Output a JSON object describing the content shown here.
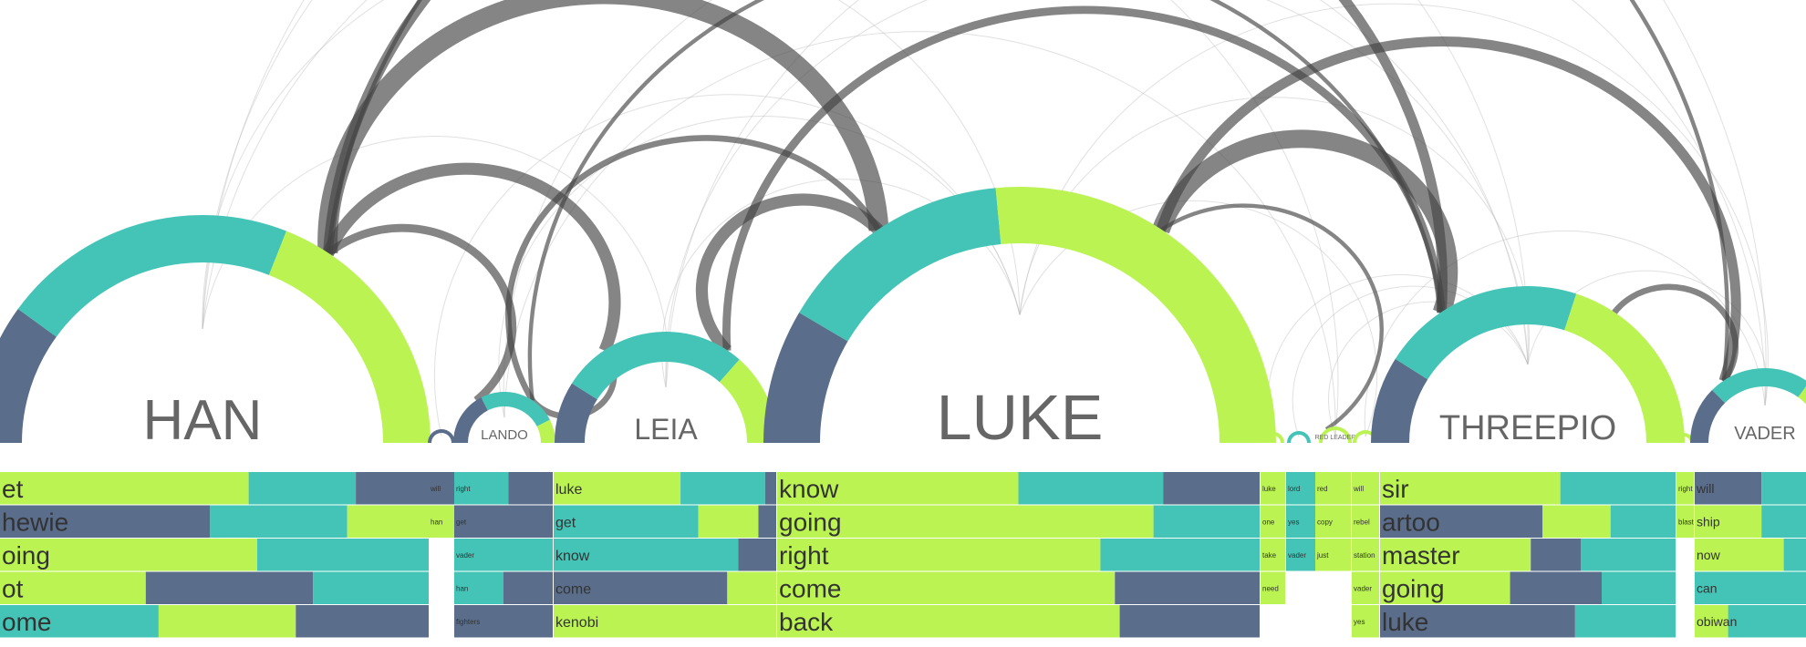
{
  "chart_data": {
    "type": "arc-diagram-with-donuts-and-stacked-bars",
    "colors": {
      "navy": "#5a6d8a",
      "teal": "#43c4b6",
      "lime": "#bbf353",
      "link": "#444444"
    },
    "characters": [
      {
        "name": "HAN",
        "share": {
          "navy": 0.2,
          "teal": 0.42,
          "lime": 0.38
        },
        "words": [
          {
            "w": "et",
            "v": [
              [
                "lime",
                0.58
              ],
              [
                "teal",
                0.25
              ],
              [
                "navy",
                0.17
              ]
            ]
          },
          {
            "w": "hewie",
            "v": [
              [
                "navy",
                0.49
              ],
              [
                "teal",
                0.32
              ],
              [
                "lime",
                0.19
              ]
            ]
          },
          {
            "w": "oing",
            "v": [
              [
                "lime",
                0.6
              ],
              [
                "teal",
                0.4
              ]
            ]
          },
          {
            "w": "ot",
            "v": [
              [
                "lime",
                0.34
              ],
              [
                "navy",
                0.39
              ],
              [
                "teal",
                0.27
              ]
            ]
          },
          {
            "w": "ome",
            "v": [
              [
                "teal",
                0.37
              ],
              [
                "lime",
                0.32
              ],
              [
                "navy",
                0.31
              ]
            ]
          }
        ]
      },
      {
        "name": "",
        "share": {
          "navy": 1.0,
          "teal": 0,
          "lime": 0
        },
        "words": [
          {
            "w": "will",
            "v": [
              [
                "navy",
                1.0
              ]
            ]
          },
          {
            "w": "han",
            "v": [
              [
                "lime",
                1.0
              ]
            ]
          }
        ]
      },
      {
        "name": "LANDO",
        "share": {
          "navy": 0.35,
          "teal": 0.5,
          "lime": 0.15
        },
        "words": [
          {
            "w": "right",
            "v": [
              [
                "teal",
                0.55
              ],
              [
                "navy",
                0.45
              ]
            ]
          },
          {
            "w": "get",
            "v": [
              [
                "navy",
                1.0
              ]
            ]
          },
          {
            "w": "vader",
            "v": [
              [
                "teal",
                1.0
              ]
            ]
          },
          {
            "w": "han",
            "v": [
              [
                "teal",
                0.5
              ],
              [
                "navy",
                0.5
              ]
            ]
          },
          {
            "w": "fighters",
            "v": [
              [
                "navy",
                1.0
              ]
            ]
          }
        ]
      },
      {
        "name": "LEIA",
        "share": {
          "navy": 0.18,
          "teal": 0.55,
          "lime": 0.27
        },
        "words": [
          {
            "w": "luke",
            "v": [
              [
                "lime",
                0.57
              ],
              [
                "teal",
                0.38
              ],
              [
                "navy",
                0.05
              ]
            ]
          },
          {
            "w": "get",
            "v": [
              [
                "teal",
                0.65
              ],
              [
                "lime",
                0.27
              ],
              [
                "navy",
                0.08
              ]
            ]
          },
          {
            "w": "know",
            "v": [
              [
                "teal",
                0.83
              ],
              [
                "navy",
                0.17
              ]
            ]
          },
          {
            "w": "come",
            "v": [
              [
                "navy",
                0.78
              ],
              [
                "lime",
                0.22
              ]
            ]
          },
          {
            "w": "kenobi",
            "v": [
              [
                "lime",
                1.0
              ]
            ]
          }
        ]
      },
      {
        "name": "LUKE",
        "share": {
          "navy": 0.17,
          "teal": 0.3,
          "lime": 0.53
        },
        "words": [
          {
            "w": "know",
            "v": [
              [
                "lime",
                0.5
              ],
              [
                "teal",
                0.3
              ],
              [
                "navy",
                0.2
              ]
            ]
          },
          {
            "w": "going",
            "v": [
              [
                "lime",
                0.78
              ],
              [
                "teal",
                0.22
              ]
            ]
          },
          {
            "w": "right",
            "v": [
              [
                "lime",
                0.67
              ],
              [
                "teal",
                0.33
              ]
            ]
          },
          {
            "w": "come",
            "v": [
              [
                "lime",
                0.7
              ],
              [
                "navy",
                0.3
              ]
            ]
          },
          {
            "w": "back",
            "v": [
              [
                "lime",
                0.71
              ],
              [
                "navy",
                0.29
              ]
            ]
          }
        ]
      },
      {
        "name": "",
        "share": {
          "navy": 0,
          "teal": 0,
          "lime": 1.0
        },
        "words": [
          {
            "w": "luke",
            "v": [
              [
                "lime",
                1.0
              ]
            ]
          },
          {
            "w": "one",
            "v": [
              [
                "lime",
                1.0
              ]
            ]
          },
          {
            "w": "take",
            "v": [
              [
                "lime",
                1.0
              ]
            ]
          },
          {
            "w": "need",
            "v": [
              [
                "lime",
                1.0
              ]
            ]
          }
        ]
      },
      {
        "name": "",
        "share": {
          "navy": 0,
          "teal": 1.0,
          "lime": 0
        },
        "words": [
          {
            "w": "lord",
            "v": [
              [
                "teal",
                1.0
              ]
            ]
          },
          {
            "w": "yes",
            "v": [
              [
                "teal",
                1.0
              ]
            ]
          },
          {
            "w": "vader",
            "v": [
              [
                "teal",
                1.0
              ]
            ]
          }
        ]
      },
      {
        "name": "RED LEADER",
        "share": {
          "navy": 0,
          "teal": 0,
          "lime": 1.0
        },
        "words": [
          {
            "w": "red",
            "v": [
              [
                "lime",
                1.0
              ]
            ]
          },
          {
            "w": "copy",
            "v": [
              [
                "lime",
                1.0
              ]
            ]
          },
          {
            "w": "just",
            "v": [
              [
                "lime",
                1.0
              ]
            ]
          }
        ]
      },
      {
        "name": "",
        "share": {
          "navy": 0,
          "teal": 0,
          "lime": 1.0
        },
        "words": [
          {
            "w": "will",
            "v": [
              [
                "lime",
                1.0
              ]
            ]
          },
          {
            "w": "rebel",
            "v": [
              [
                "lime",
                1.0
              ]
            ]
          },
          {
            "w": "station",
            "v": [
              [
                "lime",
                1.0
              ]
            ]
          },
          {
            "w": "vader",
            "v": [
              [
                "lime",
                1.0
              ]
            ]
          },
          {
            "w": "yes",
            "v": [
              [
                "lime",
                1.0
              ]
            ]
          }
        ]
      },
      {
        "name": "THREEPIO",
        "share": {
          "navy": 0.18,
          "teal": 0.42,
          "lime": 0.4
        },
        "words": [
          {
            "w": "sir",
            "v": [
              [
                "lime",
                0.61
              ],
              [
                "teal",
                0.39
              ]
            ]
          },
          {
            "w": "artoo",
            "v": [
              [
                "navy",
                0.55
              ],
              [
                "lime",
                0.23
              ],
              [
                "teal",
                0.22
              ]
            ]
          },
          {
            "w": "master",
            "v": [
              [
                "lime",
                0.51
              ],
              [
                "navy",
                0.17
              ],
              [
                "teal",
                0.32
              ]
            ]
          },
          {
            "w": "going",
            "v": [
              [
                "lime",
                0.44
              ],
              [
                "navy",
                0.31
              ],
              [
                "teal",
                0.25
              ]
            ]
          },
          {
            "w": "luke",
            "v": [
              [
                "navy",
                0.66
              ],
              [
                "teal",
                0.34
              ]
            ]
          }
        ]
      },
      {
        "name": "",
        "share": {
          "navy": 0,
          "teal": 0,
          "lime": 1.0
        },
        "words": [
          {
            "w": "right",
            "v": [
              [
                "lime",
                1.0
              ]
            ]
          },
          {
            "w": "blast",
            "v": [
              [
                "lime",
                1.0
              ]
            ]
          }
        ]
      },
      {
        "name": "VADER",
        "share": {
          "navy": 0.25,
          "teal": 0.45,
          "lime": 0.3
        },
        "words": [
          {
            "w": "will",
            "v": [
              [
                "navy",
                0.6
              ],
              [
                "teal",
                0.4
              ]
            ]
          },
          {
            "w": "ship",
            "v": [
              [
                "lime",
                0.6
              ],
              [
                "teal",
                0.4
              ]
            ]
          },
          {
            "w": "now",
            "v": [
              [
                "lime",
                0.8
              ],
              [
                "teal",
                0.2
              ]
            ]
          },
          {
            "w": "can",
            "v": [
              [
                "teal",
                1.0
              ]
            ]
          },
          {
            "w": "obiwan",
            "v": [
              [
                "lime",
                0.3
              ],
              [
                "teal",
                0.7
              ]
            ]
          }
        ]
      }
    ],
    "links": [
      {
        "source": "HAN",
        "target": "LUKE",
        "weight": 10
      },
      {
        "source": "HAN",
        "target": "LEIA",
        "weight": 6
      },
      {
        "source": "HAN",
        "target": "THREEPIO",
        "weight": 5
      },
      {
        "source": "HAN",
        "target": "LANDO",
        "weight": 4
      },
      {
        "source": "HAN",
        "target": "VADER",
        "weight": 2
      },
      {
        "source": "LEIA",
        "target": "LUKE",
        "weight": 6
      },
      {
        "source": "LEIA",
        "target": "THREEPIO",
        "weight": 4
      },
      {
        "source": "LEIA",
        "target": "LANDO",
        "weight": 3
      },
      {
        "source": "LUKE",
        "target": "THREEPIO",
        "weight": 9
      },
      {
        "source": "LUKE",
        "target": "VADER",
        "weight": 5
      },
      {
        "source": "LUKE",
        "target": "RED LEADER",
        "weight": 2
      },
      {
        "source": "LANDO",
        "target": "LUKE",
        "weight": 3
      },
      {
        "source": "LANDO",
        "target": "THREEPIO",
        "weight": 2
      },
      {
        "source": "THREEPIO",
        "target": "VADER",
        "weight": 3
      }
    ]
  }
}
